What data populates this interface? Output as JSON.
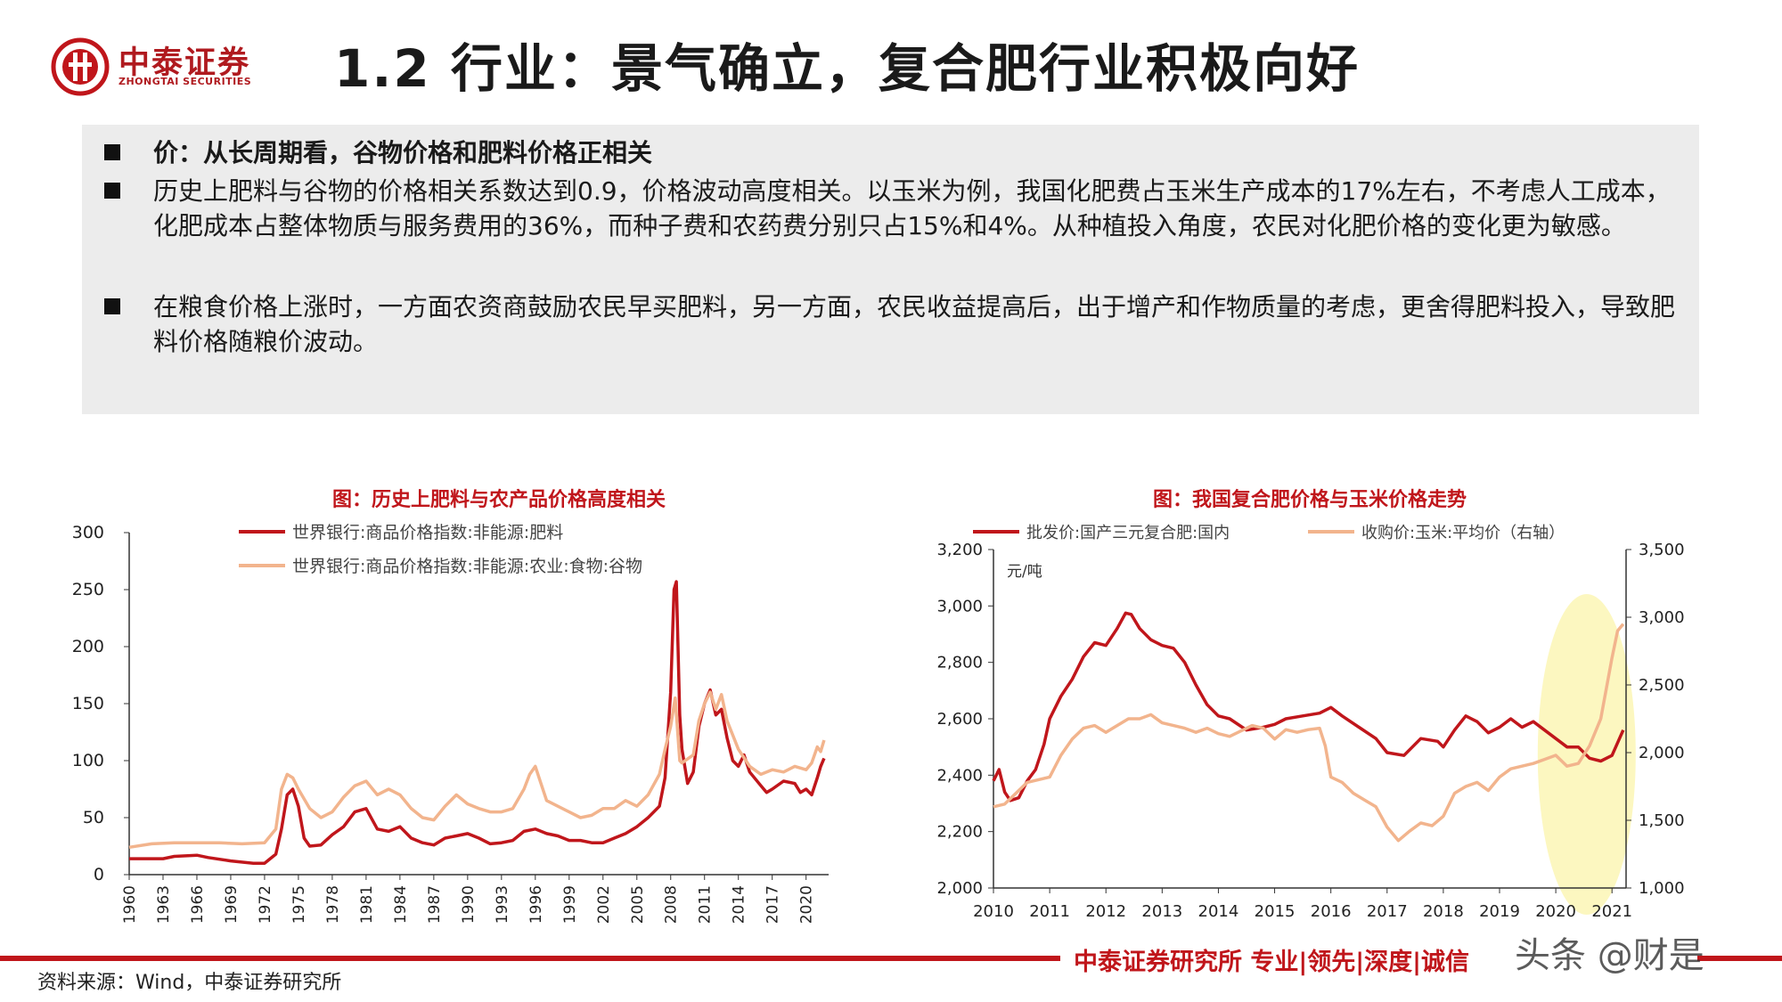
{
  "header": {
    "logo_name": "中泰证券",
    "logo_en": "ZHONGTAI SECURITIES",
    "title": "1.2 行业：景气确立，复合肥行业积极向好"
  },
  "info": {
    "b1": "价：从长周期看，谷物价格和肥料价格正相关",
    "b2": "历史上肥料与谷物的价格相关系数达到0.9，价格波动高度相关。以玉米为例，我国化肥费占玉米生产成本的17%左右，不考虑人工成本，化肥成本占整体物质与服务费用的36%，而种子费和农药费分别只占15%和4%。从种植投入角度，农民对化肥价格的变化更为敏感。",
    "b3": "在粮食价格上涨时，一方面农资商鼓励农民早买肥料，另一方面，农民收益提高后，出于增产和作物质量的考虑，更舍得肥料投入，导致肥料价格随粮价波动。"
  },
  "footer": {
    "brand": "中泰证券研究所 专业|领先|深度|诚信",
    "source": "资料来源：Wind，中泰证券研究所",
    "watermark": "头条 @财是"
  },
  "colors": {
    "red": "#c0161b",
    "salmon": "#f2b48d",
    "highlight": "#fbf6b5"
  },
  "chart_data": [
    {
      "type": "line",
      "title": "图：历史上肥料与农产品价格高度相关",
      "xlabel": "",
      "ylabel": "",
      "xlim": [
        1960,
        2022
      ],
      "ylim": [
        0,
        300
      ],
      "yticks": [
        0,
        50,
        100,
        150,
        200,
        250,
        300
      ],
      "xticks": [
        1960,
        1963,
        1966,
        1969,
        1972,
        1975,
        1978,
        1981,
        1984,
        1987,
        1990,
        1993,
        1996,
        1999,
        2002,
        2005,
        2008,
        2011,
        2014,
        2017,
        2020
      ],
      "legend_position": "top",
      "series": [
        {
          "name": "世界银行:商品价格指数:非能源:肥料",
          "color": "#c0161b",
          "x": [
            1960,
            1963,
            1964,
            1966,
            1967,
            1969,
            1971,
            1972,
            1973,
            1973.5,
            1974,
            1974.5,
            1975,
            1975.5,
            1976,
            1977,
            1978,
            1979,
            1980,
            1981,
            1982,
            1983,
            1984,
            1985,
            1986,
            1987,
            1988,
            1989,
            1990,
            1991,
            1992,
            1993,
            1994,
            1995,
            1996,
            1997,
            1998,
            1999,
            2000,
            2001,
            2002,
            2003,
            2004,
            2005,
            2006,
            2007,
            2007.5,
            2008,
            2008.3,
            2008.5,
            2008.8,
            2009,
            2009.5,
            2010,
            2010.5,
            2011,
            2011.5,
            2012,
            2012.5,
            2013,
            2013.5,
            2014,
            2014.5,
            2015,
            2016,
            2016.5,
            2017,
            2018,
            2019,
            2019.5,
            2020,
            2020.5,
            2021,
            2021.3,
            2021.6
          ],
          "y": [
            14,
            14,
            16,
            17,
            15,
            12,
            10,
            10,
            18,
            40,
            70,
            75,
            60,
            32,
            25,
            26,
            35,
            42,
            55,
            58,
            40,
            38,
            42,
            32,
            28,
            26,
            32,
            34,
            36,
            32,
            27,
            28,
            30,
            38,
            40,
            36,
            34,
            30,
            30,
            28,
            28,
            32,
            36,
            42,
            50,
            60,
            85,
            160,
            250,
            257,
            140,
            110,
            80,
            90,
            130,
            150,
            162,
            140,
            145,
            120,
            100,
            95,
            105,
            90,
            78,
            72,
            75,
            82,
            80,
            72,
            75,
            70,
            85,
            95,
            102
          ]
        },
        {
          "name": "世界银行:商品价格指数:非能源:农业:食物:谷物",
          "color": "#f2b48d",
          "x": [
            1960,
            1962,
            1964,
            1966,
            1968,
            1970,
            1972,
            1973,
            1973.5,
            1974,
            1974.5,
            1975,
            1976,
            1977,
            1978,
            1979,
            1980,
            1981,
            1982,
            1983,
            1984,
            1985,
            1986,
            1987,
            1988,
            1989,
            1990,
            1991,
            1992,
            1993,
            1994,
            1995,
            1995.5,
            1996,
            1996.5,
            1997,
            1998,
            1999,
            2000,
            2001,
            2002,
            2003,
            2004,
            2005,
            2006,
            2007,
            2007.5,
            2008,
            2008.4,
            2008.8,
            2009,
            2010,
            2010.5,
            2011,
            2011.5,
            2012,
            2012.5,
            2013,
            2014,
            2015,
            2016,
            2017,
            2018,
            2019,
            2020,
            2020.5,
            2021,
            2021.3,
            2021.6
          ],
          "y": [
            24,
            27,
            28,
            28,
            28,
            27,
            28,
            40,
            75,
            88,
            85,
            75,
            58,
            50,
            55,
            68,
            78,
            82,
            70,
            75,
            70,
            58,
            50,
            48,
            60,
            70,
            62,
            58,
            55,
            55,
            58,
            75,
            88,
            95,
            80,
            65,
            60,
            55,
            50,
            52,
            58,
            58,
            65,
            60,
            70,
            88,
            110,
            130,
            155,
            100,
            98,
            105,
            135,
            150,
            160,
            145,
            158,
            135,
            110,
            95,
            88,
            92,
            90,
            95,
            92,
            98,
            112,
            108,
            118
          ]
        }
      ]
    },
    {
      "type": "line",
      "title": "图：我国复合肥价格与玉米价格走势",
      "xlabel": "",
      "ylabel": "元/吨",
      "xlim": [
        2010,
        2021.25
      ],
      "ylim": [
        2000,
        3200
      ],
      "ylim_right": [
        1000,
        3500
      ],
      "yticks": [
        "2,000",
        "2,200",
        "2,400",
        "2,600",
        "2,800",
        "3,000",
        "3,200"
      ],
      "yticks_right": [
        "1,000",
        "1,500",
        "2,000",
        "2,500",
        "3,000",
        "3,500"
      ],
      "xticks": [
        "2010",
        "2011",
        "2012",
        "2013",
        "2014",
        "2015",
        "2016",
        "2017",
        "2018",
        "2019",
        "2020",
        "2021"
      ],
      "highlight": "2020-2021",
      "legend_position": "top",
      "series": [
        {
          "name": "批发价:国产三元复合肥:国内",
          "axis": "left",
          "color": "#c0161b",
          "x": [
            2010.0,
            2010.1,
            2010.2,
            2010.3,
            2010.45,
            2010.6,
            2010.75,
            2010.9,
            2011.0,
            2011.2,
            2011.4,
            2011.6,
            2011.8,
            2012.0,
            2012.2,
            2012.35,
            2012.45,
            2012.6,
            2012.8,
            2013.0,
            2013.2,
            2013.4,
            2013.6,
            2013.8,
            2014.0,
            2014.2,
            2014.5,
            2014.8,
            2015.0,
            2015.2,
            2015.5,
            2015.8,
            2016.0,
            2016.2,
            2016.5,
            2016.8,
            2017.0,
            2017.3,
            2017.6,
            2017.9,
            2018.0,
            2018.2,
            2018.4,
            2018.6,
            2018.8,
            2019.0,
            2019.2,
            2019.4,
            2019.6,
            2019.8,
            2020.0,
            2020.2,
            2020.4,
            2020.6,
            2020.8,
            2021.0,
            2021.2
          ],
          "y": [
            2380,
            2420,
            2340,
            2310,
            2320,
            2380,
            2420,
            2510,
            2600,
            2680,
            2740,
            2820,
            2870,
            2860,
            2920,
            2975,
            2970,
            2920,
            2880,
            2860,
            2850,
            2800,
            2720,
            2650,
            2610,
            2600,
            2560,
            2570,
            2580,
            2600,
            2610,
            2620,
            2640,
            2610,
            2570,
            2530,
            2480,
            2470,
            2530,
            2520,
            2500,
            2560,
            2610,
            2590,
            2550,
            2570,
            2600,
            2570,
            2590,
            2560,
            2530,
            2500,
            2500,
            2460,
            2450,
            2470,
            2560
          ]
        },
        {
          "name": "收购价:玉米:平均价（右轴）",
          "axis": "right",
          "color": "#f2b48d",
          "x": [
            2010.0,
            2010.2,
            2010.4,
            2010.6,
            2010.8,
            2011.0,
            2011.2,
            2011.4,
            2011.6,
            2011.8,
            2012.0,
            2012.2,
            2012.4,
            2012.6,
            2012.8,
            2013.0,
            2013.2,
            2013.4,
            2013.6,
            2013.8,
            2014.0,
            2014.2,
            2014.4,
            2014.6,
            2014.8,
            2015.0,
            2015.2,
            2015.4,
            2015.6,
            2015.8,
            2015.9,
            2016.0,
            2016.2,
            2016.4,
            2016.6,
            2016.8,
            2017.0,
            2017.2,
            2017.4,
            2017.6,
            2017.8,
            2018.0,
            2018.2,
            2018.4,
            2018.6,
            2018.8,
            2019.0,
            2019.2,
            2019.4,
            2019.6,
            2019.8,
            2020.0,
            2020.2,
            2020.4,
            2020.6,
            2020.8,
            2021.0,
            2021.1,
            2021.2
          ],
          "y": [
            1600,
            1620,
            1700,
            1780,
            1800,
            1820,
            1980,
            2100,
            2180,
            2200,
            2150,
            2200,
            2250,
            2250,
            2280,
            2220,
            2200,
            2180,
            2150,
            2180,
            2140,
            2120,
            2160,
            2200,
            2180,
            2100,
            2170,
            2150,
            2170,
            2180,
            2050,
            1820,
            1780,
            1700,
            1650,
            1600,
            1450,
            1350,
            1420,
            1480,
            1460,
            1530,
            1700,
            1750,
            1780,
            1720,
            1820,
            1880,
            1900,
            1920,
            1950,
            1980,
            1900,
            1920,
            2050,
            2250,
            2700,
            2900,
            2950
          ]
        }
      ]
    }
  ]
}
